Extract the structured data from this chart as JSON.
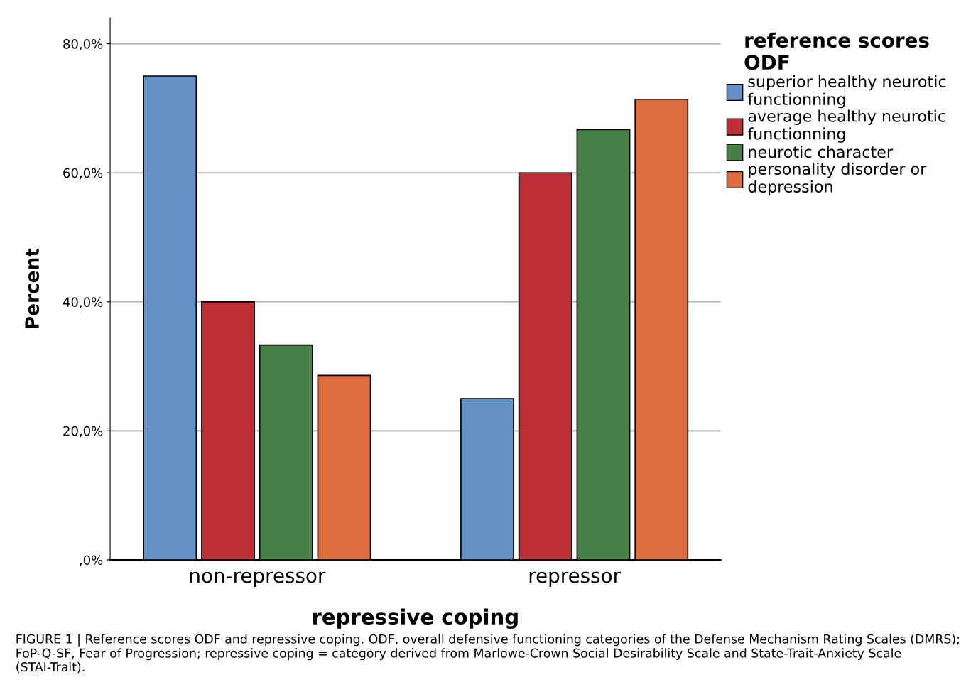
{
  "chart_data": {
    "type": "bar",
    "xlabel": "repressive coping",
    "ylabel": "Percent",
    "legend_title": "reference scores\nODF",
    "categories": [
      "non-repressor",
      "repressor"
    ],
    "series": [
      {
        "name": "superior healthy neurotic\nfunctionning",
        "color": "#6690c8",
        "values": [
          75.0,
          25.0
        ]
      },
      {
        "name": "average healthy neurotic\nfunctionning",
        "color": "#bd2f37",
        "values": [
          40.0,
          60.0
        ]
      },
      {
        "name": "neurotic character",
        "color": "#468046",
        "values": [
          33.3,
          66.7
        ]
      },
      {
        "name": "personality disorder or\ndepression",
        "color": "#df6d3e",
        "values": [
          28.6,
          71.4
        ]
      }
    ],
    "ylim": [
      0,
      84
    ],
    "yticks": [
      {
        "value": 0,
        "label": ",0%"
      },
      {
        "value": 20,
        "label": "20,0%"
      },
      {
        "value": 40,
        "label": "40,0%"
      },
      {
        "value": 60,
        "label": "60,0%"
      },
      {
        "value": 80,
        "label": "80,0%"
      }
    ],
    "grid": "y",
    "legend": "right",
    "annotations": [
      "FIGURE 1 | Reference scores ODF and repressive coping. ODF, overall defensive functioning categories of the Defense Mechanism Rating Scales (DMRS); FoP-Q-SF, Fear of Progression; repressive coping = category derived from Marlowe-Crown Social Desirability Scale and State-Trait-Anxiety Scale (STAI-Trait)."
    ]
  }
}
